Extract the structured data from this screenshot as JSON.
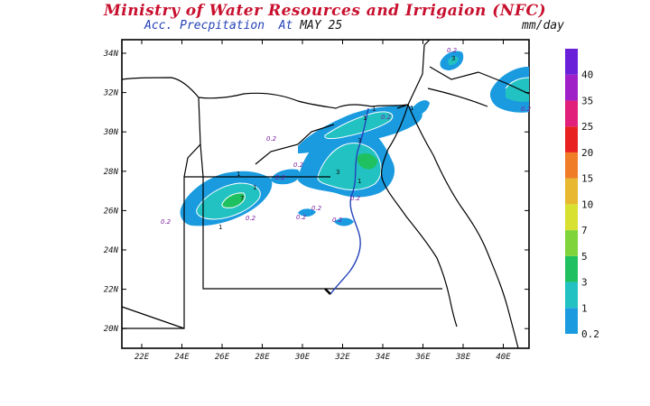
{
  "header": {
    "title": "Ministry of Water Resources and Irrigaion (NFC)",
    "subtitle_label": "Acc. Precpitation  At ",
    "subtitle_date": "MAY 25",
    "units": "mm/day"
  },
  "map": {
    "lon_ticks": [
      "22E",
      "24E",
      "26E",
      "28E",
      "30E",
      "32E",
      "34E",
      "36E",
      "38E",
      "40E"
    ],
    "lat_ticks": [
      "34N",
      "32N",
      "30N",
      "28N",
      "26N",
      "24N",
      "22N",
      "20N"
    ],
    "contour_labels": [
      "0.2",
      "0.2",
      "0.2",
      "0.2",
      "0.2",
      "0.2",
      "0.2",
      "0.2",
      "0.2",
      "0.2",
      "0.2",
      "0.2",
      "1",
      "1",
      "1",
      "1",
      "1",
      "1",
      "1",
      "3",
      "3",
      "3",
      "7"
    ]
  },
  "legend": {
    "colors": [
      "#1a9be0",
      "#22c2c2",
      "#1fc060",
      "#7ed43a",
      "#d8e030",
      "#e8b830",
      "#f07c28",
      "#e82020",
      "#e0207a",
      "#a020c8",
      "#6a20d8"
    ],
    "labels": [
      "0.2",
      "1",
      "3",
      "5",
      "7",
      "10",
      "15",
      "20",
      "25",
      "35",
      "40"
    ]
  }
}
